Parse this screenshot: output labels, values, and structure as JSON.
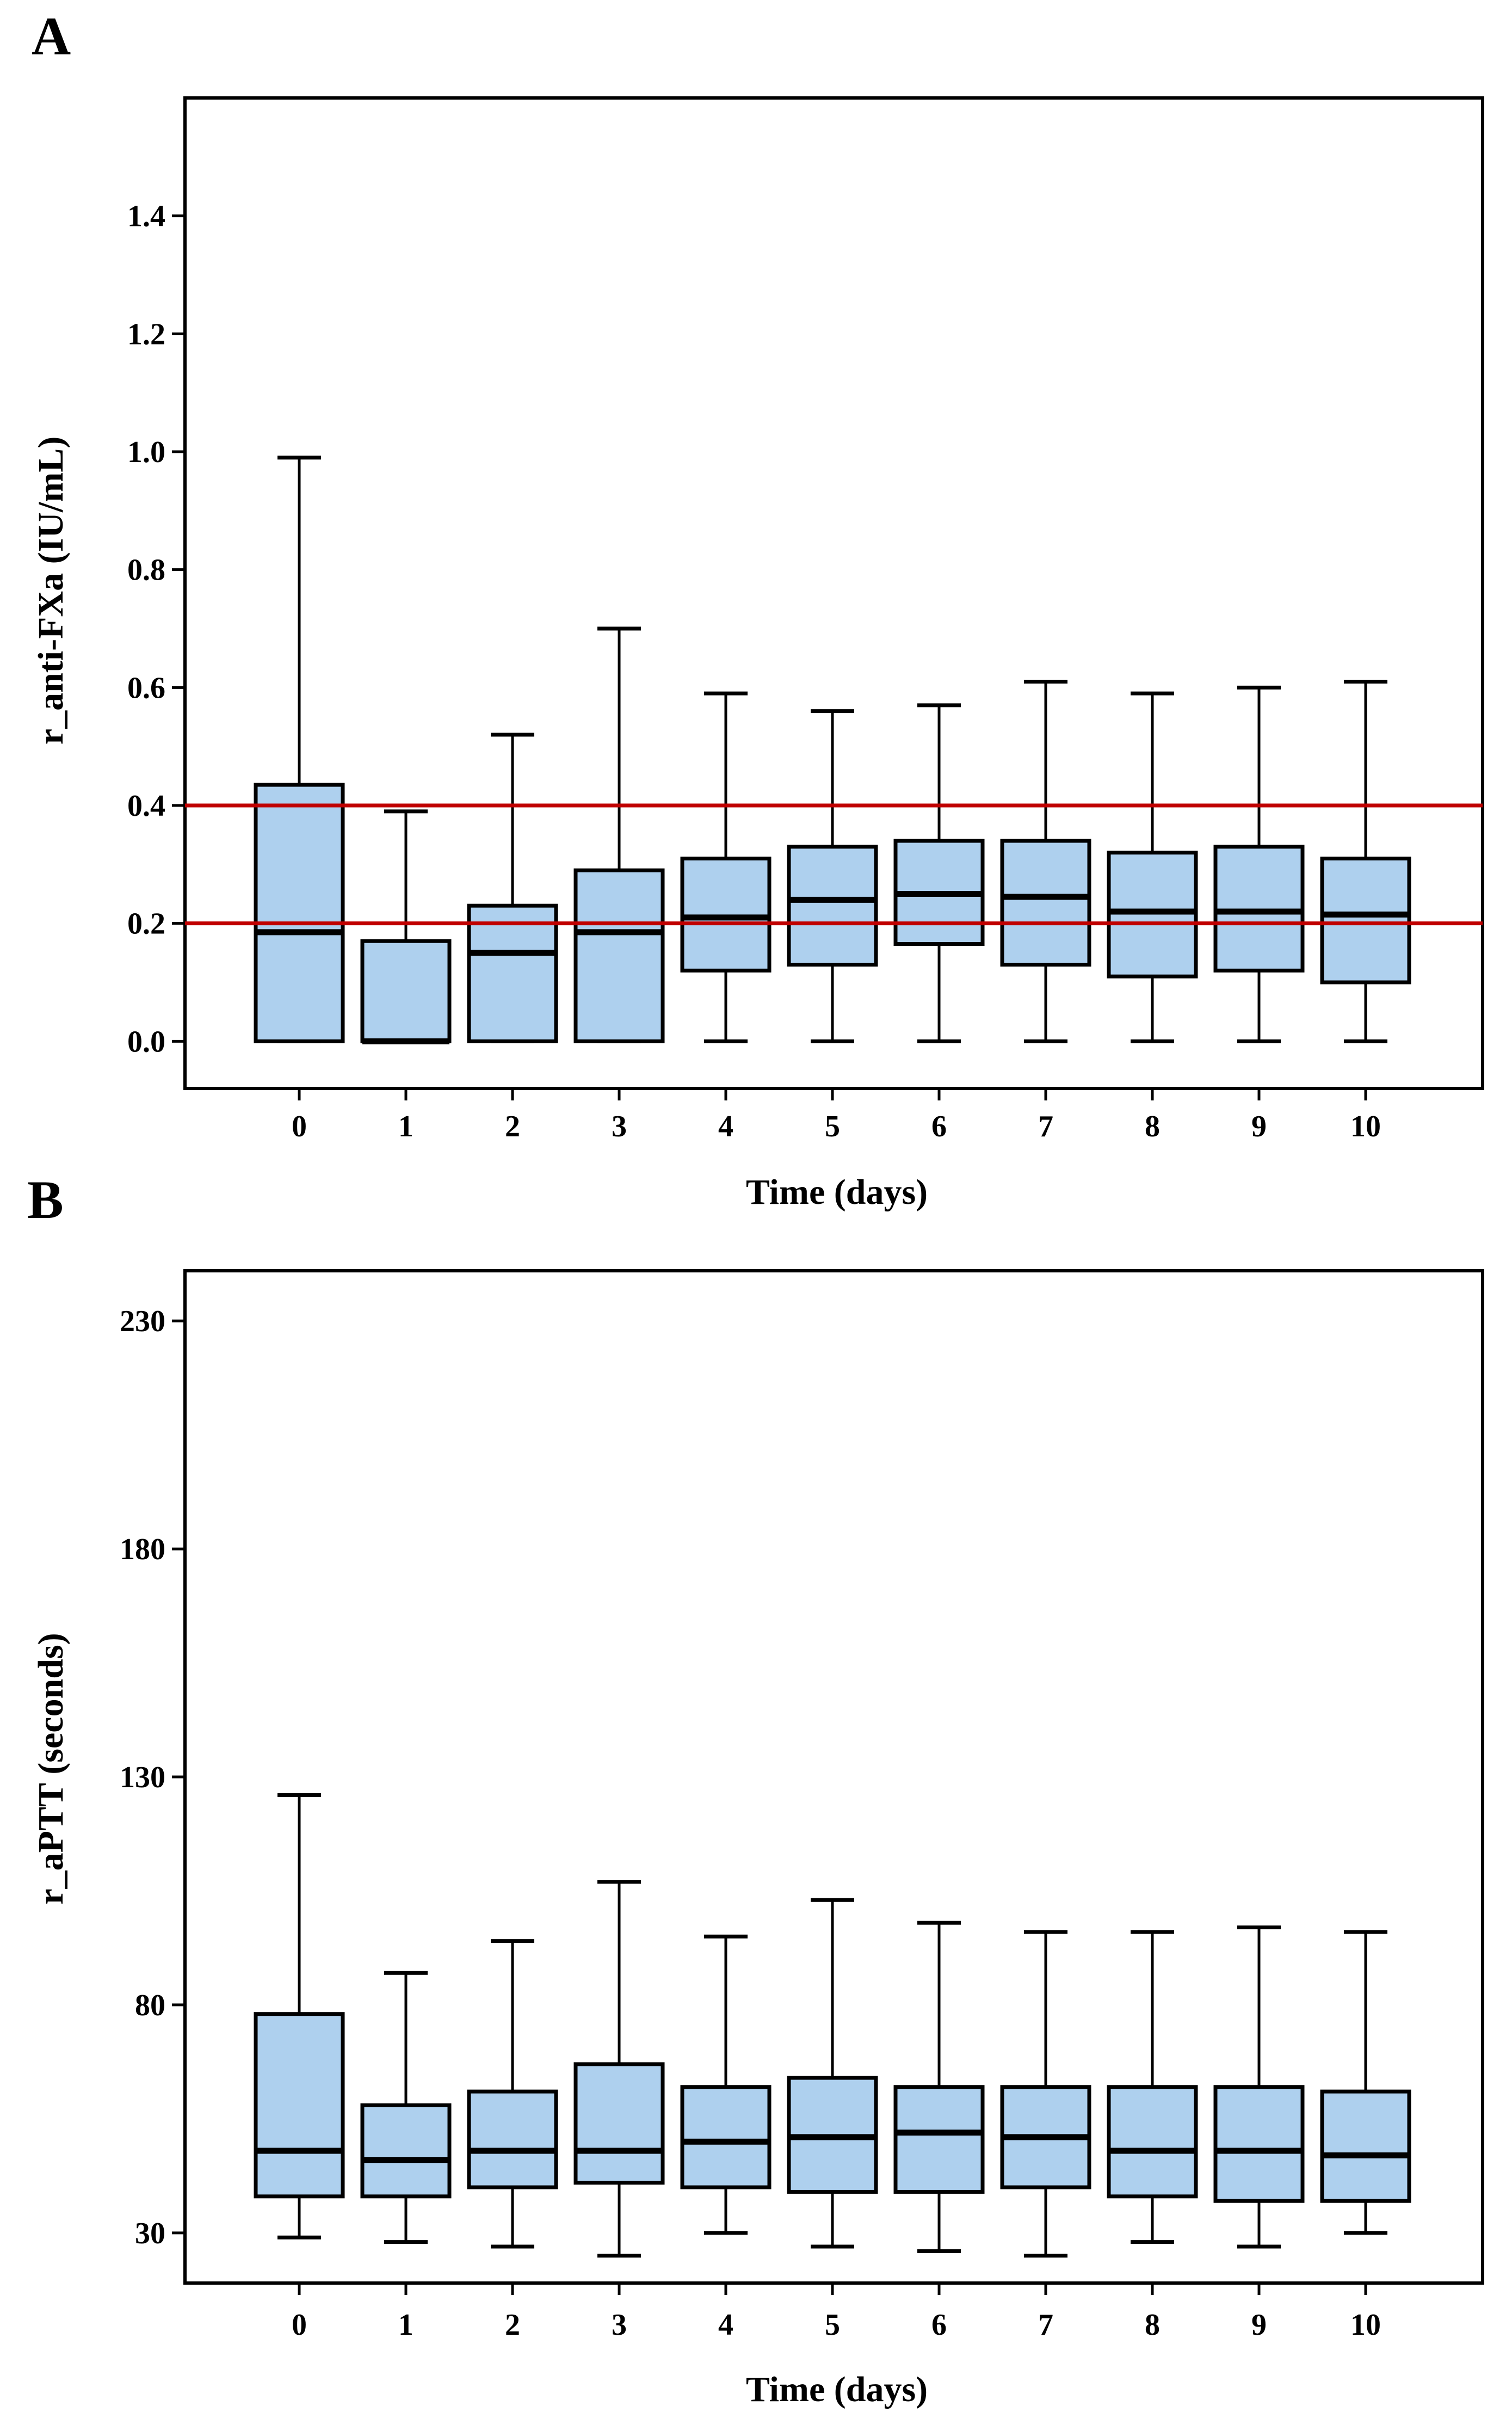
{
  "chart_data": [
    {
      "panel": "A",
      "type": "boxplot",
      "xlabel": "Time (days)",
      "ylabel": "r_anti-FXa (IU/mL)",
      "categories": [
        "0",
        "1",
        "2",
        "3",
        "4",
        "5",
        "6",
        "7",
        "8",
        "9",
        "10"
      ],
      "ylim": [
        -0.08,
        1.6
      ],
      "yticks": [
        0.0,
        0.2,
        0.4,
        0.6,
        0.8,
        1.0,
        1.2,
        1.4
      ],
      "ytick_labels": [
        "0.0",
        "0.2",
        "0.4",
        "0.6",
        "0.8",
        "1.0",
        "1.2",
        "1.4"
      ],
      "boxes": [
        {
          "min": 0.0,
          "q1": 0.0,
          "median": 0.185,
          "q3": 0.435,
          "max": 0.99
        },
        {
          "min": 0.0,
          "q1": 0.0,
          "median": 0.0,
          "q3": 0.17,
          "max": 0.39
        },
        {
          "min": 0.0,
          "q1": 0.0,
          "median": 0.15,
          "q3": 0.23,
          "max": 0.52
        },
        {
          "min": 0.0,
          "q1": 0.0,
          "median": 0.185,
          "q3": 0.29,
          "max": 0.7
        },
        {
          "min": 0.0,
          "q1": 0.12,
          "median": 0.21,
          "q3": 0.31,
          "max": 0.59
        },
        {
          "min": 0.0,
          "q1": 0.13,
          "median": 0.24,
          "q3": 0.33,
          "max": 0.56
        },
        {
          "min": 0.0,
          "q1": 0.165,
          "median": 0.25,
          "q3": 0.34,
          "max": 0.57
        },
        {
          "min": 0.0,
          "q1": 0.13,
          "median": 0.245,
          "q3": 0.34,
          "max": 0.61
        },
        {
          "min": 0.0,
          "q1": 0.11,
          "median": 0.22,
          "q3": 0.32,
          "max": 0.59
        },
        {
          "min": 0.0,
          "q1": 0.12,
          "median": 0.22,
          "q3": 0.33,
          "max": 0.6
        },
        {
          "min": 0.0,
          "q1": 0.1,
          "median": 0.215,
          "q3": 0.31,
          "max": 0.61
        }
      ],
      "reference_lines": [
        0.2,
        0.4
      ],
      "reference_color": "#c00000",
      "box_fill": "#aed0ee"
    },
    {
      "panel": "B",
      "type": "boxplot",
      "xlabel": "Time (days)",
      "ylabel": "r_aPTT (seconds)",
      "categories": [
        "0",
        "1",
        "2",
        "3",
        "4",
        "5",
        "6",
        "7",
        "8",
        "9",
        "10"
      ],
      "ylim": [
        19,
        241
      ],
      "yticks": [
        30,
        80,
        130,
        180,
        230
      ],
      "ytick_labels": [
        "30",
        "80",
        "130",
        "180",
        "230"
      ],
      "boxes": [
        {
          "min": 29,
          "q1": 38,
          "median": 48,
          "q3": 78,
          "max": 126
        },
        {
          "min": 28,
          "q1": 38,
          "median": 46,
          "q3": 58,
          "max": 87
        },
        {
          "min": 27,
          "q1": 40,
          "median": 48,
          "q3": 61,
          "max": 94
        },
        {
          "min": 25,
          "q1": 41,
          "median": 48,
          "q3": 67,
          "max": 107
        },
        {
          "min": 30,
          "q1": 40,
          "median": 50,
          "q3": 62,
          "max": 95
        },
        {
          "min": 27,
          "q1": 39,
          "median": 51,
          "q3": 64,
          "max": 103
        },
        {
          "min": 26,
          "q1": 39,
          "median": 52,
          "q3": 62,
          "max": 98
        },
        {
          "min": 25,
          "q1": 40,
          "median": 51,
          "q3": 62,
          "max": 96
        },
        {
          "min": 28,
          "q1": 38,
          "median": 48,
          "q3": 62,
          "max": 96
        },
        {
          "min": 27,
          "q1": 37,
          "median": 48,
          "q3": 62,
          "max": 97
        },
        {
          "min": 30,
          "q1": 37,
          "median": 47,
          "q3": 61,
          "max": 96
        }
      ],
      "reference_lines": [],
      "box_fill": "#aed0ee"
    }
  ]
}
